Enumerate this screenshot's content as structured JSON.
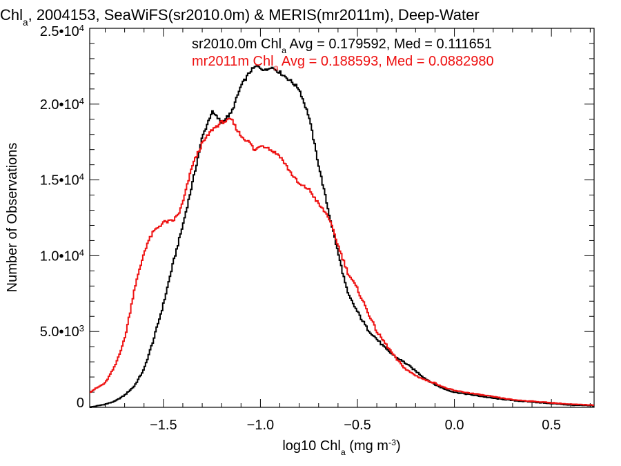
{
  "chart_data": {
    "type": "line",
    "step": true,
    "title_parts": [
      "Chl",
      "a",
      ", 2004153, SeaWiFS(sr2010.0m) & MERIS(mr2011m), Deep-Water"
    ],
    "xlabel_parts": [
      "log10 Chl",
      "a",
      " (mg m",
      "-3",
      ")"
    ],
    "ylabel": "Number of Observations",
    "xlim": [
      -1.88,
      0.72
    ],
    "ylim": [
      0,
      25000
    ],
    "x_ticks": [
      {
        "value": -1.5,
        "label": "−1.5"
      },
      {
        "value": -1.0,
        "label": "−1.0"
      },
      {
        "value": -0.5,
        "label": "−0.5"
      },
      {
        "value": 0.0,
        "label": "0.0"
      },
      {
        "value": 0.5,
        "label": "0.5"
      }
    ],
    "x_minor_step": 0.1,
    "y_ticks": [
      {
        "value": 0,
        "mant": "0",
        "exp": ""
      },
      {
        "value": 5000,
        "mant": "5.0•10",
        "exp": "3"
      },
      {
        "value": 10000,
        "mant": "1.0•10",
        "exp": "4"
      },
      {
        "value": 15000,
        "mant": "1.5•10",
        "exp": "4"
      },
      {
        "value": 20000,
        "mant": "2.0•10",
        "exp": "4"
      },
      {
        "value": 25000,
        "mant": "2.5•10",
        "exp": "4"
      }
    ],
    "y_minor_step": 1000,
    "legend": [
      {
        "color": "#000000",
        "parts": [
          "sr2010.0m Chl",
          "a",
          " Avg = 0.179592, Med = 0.111651"
        ]
      },
      {
        "color": "#ee1111",
        "parts": [
          "mr2011m Chl",
          "a",
          " Avg = 0.188593, Med = 0.0882980"
        ]
      }
    ],
    "series": [
      {
        "name": "sr2010.0m",
        "color": "#000000",
        "x": [
          -1.88,
          -1.8,
          -1.75,
          -1.7,
          -1.65,
          -1.6,
          -1.55,
          -1.5,
          -1.45,
          -1.4,
          -1.35,
          -1.3,
          -1.25,
          -1.2,
          -1.15,
          -1.1,
          -1.05,
          -1.02,
          -1.0,
          -0.97,
          -0.95,
          -0.9,
          -0.85,
          -0.8,
          -0.75,
          -0.7,
          -0.65,
          -0.6,
          -0.55,
          -0.5,
          -0.45,
          -0.4,
          -0.35,
          -0.3,
          -0.25,
          -0.2,
          -0.15,
          -0.1,
          -0.05,
          0.0,
          0.1,
          0.2,
          0.3,
          0.4,
          0.5,
          0.6,
          0.72
        ],
        "y": [
          0,
          200,
          400,
          800,
          1400,
          2500,
          4500,
          6800,
          9500,
          12000,
          14800,
          17800,
          19500,
          18800,
          19400,
          21200,
          22200,
          22500,
          22400,
          22200,
          22500,
          22100,
          21600,
          21000,
          19200,
          16000,
          13000,
          10200,
          7500,
          6300,
          5200,
          4500,
          3800,
          3300,
          2900,
          2400,
          1900,
          1500,
          1200,
          1000,
          800,
          600,
          450,
          350,
          250,
          150,
          100
        ]
      },
      {
        "name": "mr2011m",
        "color": "#ee1111",
        "x": [
          -1.88,
          -1.8,
          -1.75,
          -1.7,
          -1.67,
          -1.65,
          -1.62,
          -1.6,
          -1.58,
          -1.55,
          -1.5,
          -1.45,
          -1.42,
          -1.4,
          -1.35,
          -1.3,
          -1.25,
          -1.2,
          -1.17,
          -1.15,
          -1.12,
          -1.1,
          -1.05,
          -1.03,
          -1.0,
          -0.97,
          -0.95,
          -0.9,
          -0.85,
          -0.8,
          -0.75,
          -0.7,
          -0.65,
          -0.6,
          -0.55,
          -0.5,
          -0.45,
          -0.4,
          -0.35,
          -0.3,
          -0.25,
          -0.2,
          -0.15,
          -0.1,
          -0.05,
          0.0,
          0.1,
          0.2,
          0.3,
          0.4,
          0.5,
          0.6,
          0.72
        ],
        "y": [
          1000,
          1600,
          2700,
          4500,
          6400,
          7800,
          9200,
          10200,
          10900,
          11600,
          12200,
          12300,
          12800,
          13500,
          16000,
          17400,
          18300,
          18800,
          18900,
          19000,
          18300,
          17900,
          17400,
          16900,
          17300,
          17200,
          17000,
          16600,
          15600,
          14700,
          14400,
          13400,
          12600,
          10700,
          8900,
          7800,
          6400,
          5000,
          4100,
          3200,
          2500,
          2100,
          1800,
          1600,
          1300,
          1100,
          900,
          700,
          500,
          400,
          300,
          200,
          150
        ]
      }
    ]
  }
}
